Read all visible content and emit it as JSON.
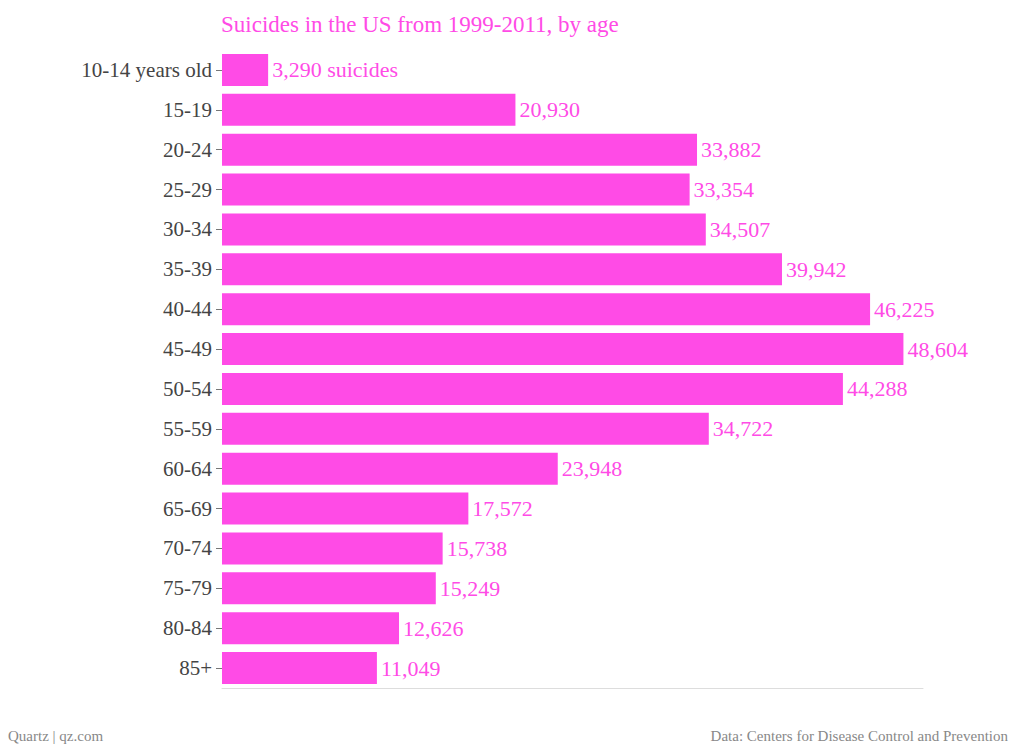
{
  "chart_data": {
    "type": "bar",
    "orientation": "horizontal",
    "title": "Suicides in the US from 1999-2011, by age",
    "categories": [
      "10-14 years old",
      "15-19",
      "20-24",
      "25-29",
      "30-34",
      "35-39",
      "40-44",
      "45-49",
      "50-54",
      "55-59",
      "60-64",
      "65-69",
      "70-74",
      "75-79",
      "80-84",
      "85+"
    ],
    "values": [
      3290,
      20930,
      33882,
      33354,
      34507,
      39942,
      46225,
      48604,
      44288,
      34722,
      23948,
      17572,
      15738,
      15249,
      12626,
      11049
    ],
    "value_labels": [
      "3,290 suicides",
      "20,930",
      "33,882",
      "33,354",
      "34,507",
      "39,942",
      "46,225",
      "48,604",
      "44,288",
      "34,722",
      "23,948",
      "17,572",
      "15,738",
      "15,249",
      "12,626",
      "11,049"
    ],
    "color": "#ff4be6",
    "xlim": [
      0,
      50000
    ],
    "xticks": [],
    "grid": false,
    "data_labels": true,
    "tick_labels": "y",
    "notes": [
      "Quartz | qz.com",
      "Data: Centers for Disease Control and Prevention"
    ]
  }
}
